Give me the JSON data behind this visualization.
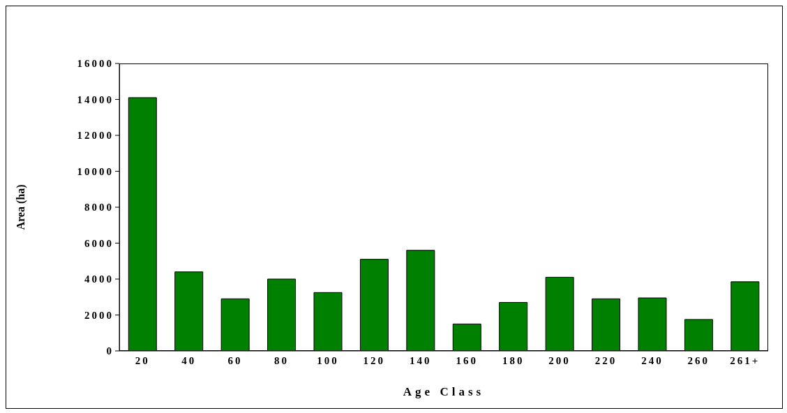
{
  "chart_data": {
    "type": "bar",
    "xlabel": "Age Class",
    "ylabel": "Area (ha)",
    "categories": [
      "20",
      "40",
      "60",
      "80",
      "100",
      "120",
      "140",
      "160",
      "180",
      "200",
      "220",
      "240",
      "260",
      "261+"
    ],
    "values": [
      14100,
      4400,
      2900,
      4000,
      3250,
      5100,
      5600,
      1500,
      2700,
      4100,
      2900,
      2950,
      1750,
      3850
    ],
    "color": "#008000",
    "ylim": [
      0,
      16000
    ],
    "yticks": [
      0,
      2000,
      4000,
      6000,
      8000,
      10000,
      12000,
      14000,
      16000
    ],
    "grid": false
  }
}
